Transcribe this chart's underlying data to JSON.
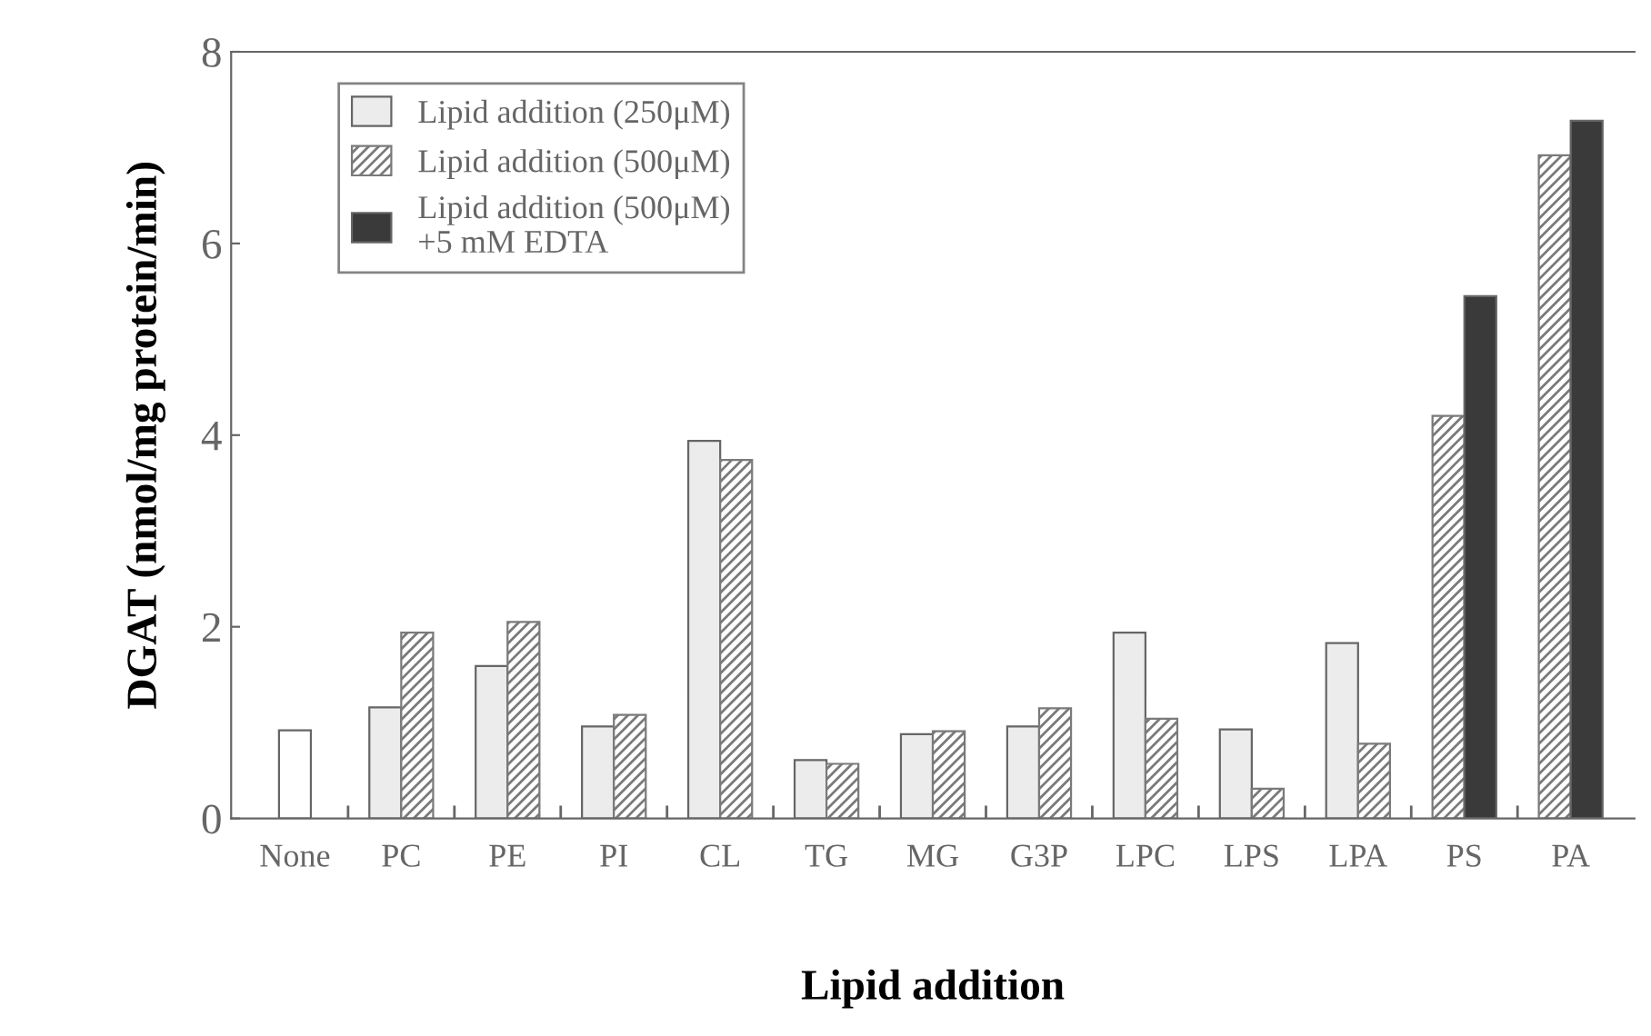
{
  "chart_data": {
    "type": "bar",
    "xlabel": "Lipid addition",
    "ylabel": "DGAT (nmol/mg protein/min)",
    "categories": [
      "None",
      "PC",
      "PE",
      "PI",
      "CL",
      "TG",
      "MG",
      "G3P",
      "LPC",
      "LPS",
      "LPA",
      "PS",
      "PA"
    ],
    "series": [
      {
        "name": "Lipid addition (250μM)",
        "color": "#ececec",
        "colors": [
          "#ffffff",
          "#ececec",
          "#ececec",
          "#ececec",
          "#ececec",
          "#ececec",
          "#ececec",
          "#ececec",
          "#ececec",
          "#ececec",
          "#ececec",
          "#ececec",
          "#ececec"
        ],
        "values": [
          0.92,
          1.16,
          1.59,
          0.96,
          3.94,
          0.61,
          0.88,
          0.96,
          1.94,
          0.93,
          1.83,
          null,
          null
        ]
      },
      {
        "name": "Lipid addition (500μM)",
        "color": "#7a7a7a",
        "values": [
          null,
          1.94,
          2.05,
          1.08,
          3.74,
          0.57,
          0.91,
          1.15,
          1.04,
          0.31,
          0.78,
          4.2,
          6.92
        ]
      },
      {
        "name": "Lipid addition (500μM)\n+5 mM EDTA",
        "color": "#3a3a3a",
        "values": [
          null,
          null,
          null,
          null,
          null,
          null,
          null,
          null,
          null,
          null,
          null,
          5.45,
          7.28
        ]
      }
    ],
    "ylim": [
      0,
      8
    ],
    "yticks": [
      0,
      2,
      4,
      6,
      8
    ],
    "legend": "top left",
    "grid": false
  }
}
